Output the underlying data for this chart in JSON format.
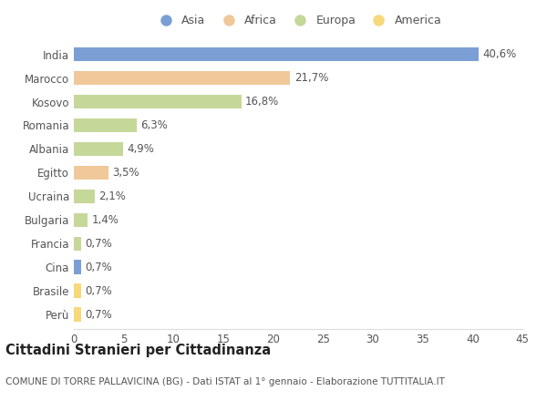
{
  "categories": [
    "India",
    "Marocco",
    "Kosovo",
    "Romania",
    "Albania",
    "Egitto",
    "Ucraina",
    "Bulgaria",
    "Francia",
    "Cina",
    "Brasile",
    "Perù"
  ],
  "values": [
    40.6,
    21.7,
    16.8,
    6.3,
    4.9,
    3.5,
    2.1,
    1.4,
    0.7,
    0.7,
    0.7,
    0.7
  ],
  "labels": [
    "40,6%",
    "21,7%",
    "16,8%",
    "6,3%",
    "4,9%",
    "3,5%",
    "2,1%",
    "1,4%",
    "0,7%",
    "0,7%",
    "0,7%",
    "0,7%"
  ],
  "continents": [
    "Asia",
    "Africa",
    "Europa",
    "Europa",
    "Europa",
    "Africa",
    "Europa",
    "Europa",
    "Europa",
    "Asia",
    "America",
    "America"
  ],
  "colors": {
    "Asia": "#7b9fd4",
    "Africa": "#f0c89a",
    "Europa": "#c5d89a",
    "America": "#f5d97a"
  },
  "legend_order": [
    "Asia",
    "Africa",
    "Europa",
    "America"
  ],
  "xlim": [
    0,
    45
  ],
  "xticks": [
    0,
    5,
    10,
    15,
    20,
    25,
    30,
    35,
    40,
    45
  ],
  "title_main": "Cittadini Stranieri per Cittadinanza",
  "title_sub": "COMUNE DI TORRE PALLAVICINA (BG) - Dati ISTAT al 1° gennaio - Elaborazione TUTTITALIA.IT",
  "background_color": "#ffffff",
  "bar_height": 0.6,
  "label_fontsize": 8.5,
  "tick_fontsize": 8.5,
  "title_fontsize": 10.5,
  "subtitle_fontsize": 7.5
}
